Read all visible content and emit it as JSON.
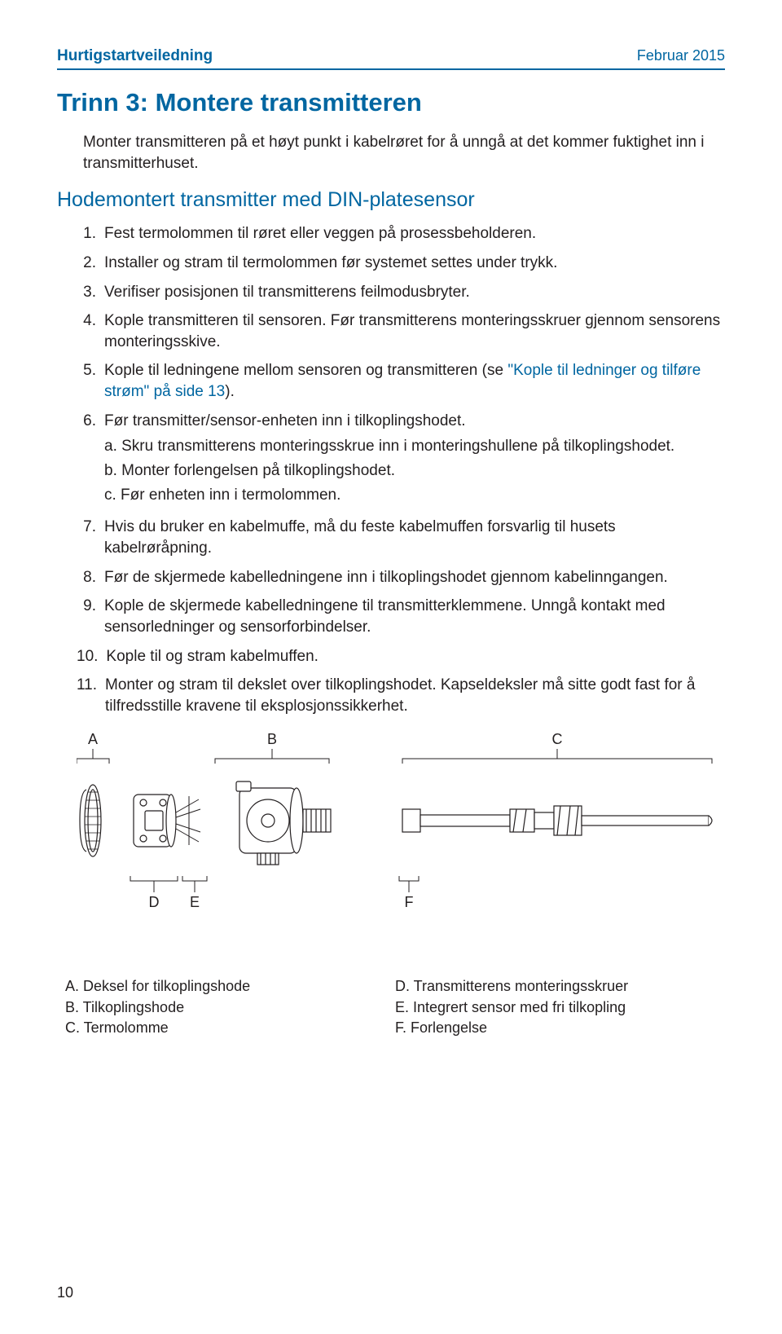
{
  "header": {
    "left": "Hurtigstartveiledning",
    "right": "Februar 2015"
  },
  "colors": {
    "brand": "#0066a1",
    "text": "#231f20",
    "bg": "#ffffff"
  },
  "title": "Trinn 3: Montere transmitteren",
  "intro": "Monter transmitteren på et høyt punkt i kabelrøret for å unngå at det kommer fuktighet inn i transmitterhuset.",
  "subtitle": "Hodemontert transmitter med DIN-platesensor",
  "steps": [
    {
      "n": "1.",
      "text": "Fest termolommen til røret eller veggen på prosessbeholderen."
    },
    {
      "n": "2.",
      "text": "Installer og stram til termolommen før systemet settes under trykk."
    },
    {
      "n": "3.",
      "text": "Verifiser posisjonen til transmitterens feilmodusbryter."
    },
    {
      "n": "4.",
      "text": "Kople transmitteren til sensoren. Før transmitterens monteringsskruer gjennom sensorens monteringsskive."
    },
    {
      "n": "5.",
      "pre": "Kople til ledningene mellom sensoren og transmitteren (se ",
      "link": "\"Kople til ledninger og tilføre strøm\" på side 13",
      "post": ")."
    },
    {
      "n": "6.",
      "text": "Før transmitter/sensor-enheten inn i tilkoplingshodet.",
      "subs": [
        {
          "l": "a.",
          "t": "Skru transmitterens monteringsskrue inn i monteringshullene på tilkoplingshodet."
        },
        {
          "l": "b.",
          "t": "Monter forlengelsen på tilkoplingshodet."
        },
        {
          "l": "c.",
          "t": "Før enheten inn i termolommen."
        }
      ]
    },
    {
      "n": "7.",
      "text": "Hvis du bruker en kabelmuffe, må du feste kabelmuffen forsvarlig til husets kabelrøråpning."
    },
    {
      "n": "8.",
      "text": "Før de skjermede kabelledningene inn i tilkoplingshodet gjennom kabelinngangen."
    },
    {
      "n": "9.",
      "text": "Kople de skjermede kabelledningene til transmitterklemmene. Unngå kontakt med sensorledninger og sensorforbindelser."
    },
    {
      "n": "10.",
      "text": "Kople til og stram kabelmuffen."
    },
    {
      "n": "11.",
      "text": "Monter og stram til dekslet over tilkoplingshodet. Kapseldeksler må sitte godt fast for å tilfredsstille kravene til eksplosjonssikkerhet."
    }
  ],
  "diagram": {
    "top_labels": [
      "A",
      "B",
      "C"
    ],
    "bottom_labels": [
      "D",
      "E",
      "F"
    ]
  },
  "legend_left": [
    "A. Deksel for tilkoplingshode",
    "B. Tilkoplingshode",
    "C. Termolomme"
  ],
  "legend_right": [
    "D. Transmitterens monteringsskruer",
    "E. Integrert sensor med fri tilkopling",
    "F. Forlengelse"
  ],
  "page_number": "10"
}
